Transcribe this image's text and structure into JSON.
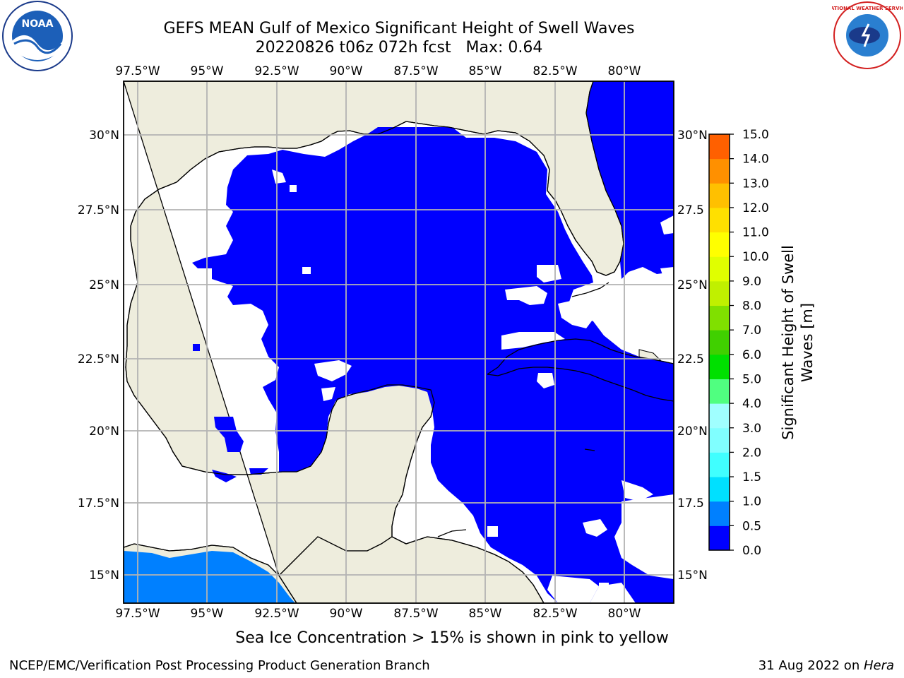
{
  "header": {
    "title_line1": "GEFS MEAN Gulf of Mexico Significant Height of Swell Waves",
    "title_line2": "20220826 t06z 072h fcst   Max: 0.64"
  },
  "logos": {
    "left": "NOAA",
    "right": "NATIONAL WEATHER SERVICE"
  },
  "map": {
    "lon_labels": [
      "97.5°W",
      "95°W",
      "92.5°W",
      "90°W",
      "87.5°W",
      "85°W",
      "82.5°W",
      "80°W"
    ],
    "lat_labels": [
      "30°N",
      "27.5°N",
      "25°N",
      "22.5°N",
      "20°N",
      "17.5°N",
      "15°N"
    ],
    "right_lat_labels": [
      "30°N",
      "27.5",
      "25°N",
      "22.5",
      "20°N",
      "17.5",
      "15°N"
    ],
    "colors": {
      "land": "#eeeddd",
      "low_swell": "#0000ff",
      "swell_05_10": "#0080ff",
      "grid": "#b3b3b3"
    }
  },
  "colorbar": {
    "label": "Significant Height of Swell Waves [m]",
    "tick_labels": [
      "15.0",
      "14.0",
      "13.0",
      "12.0",
      "11.0",
      "10.0",
      "9.0",
      "8.0",
      "7.0",
      "6.0",
      "5.0",
      "4.0",
      "3.0",
      "2.0",
      "1.5",
      "1.0",
      "0.5",
      "0.0"
    ],
    "colors": [
      "#0000ff",
      "#0080ff",
      "#00e0ff",
      "#40ffff",
      "#80ffff",
      "#a0ffff",
      "#50ff80",
      "#00e000",
      "#40d000",
      "#80e000",
      "#c0f000",
      "#e0ff00",
      "#ffff00",
      "#ffe000",
      "#ffc000",
      "#ff9000",
      "#ff6000",
      "#ff3000",
      "#ff0000"
    ]
  },
  "footer": {
    "note": "Sea Ice Concentration > 15% is shown in pink to yellow",
    "left": "NCEP/EMC/Verification Post Processing Product Generation Branch",
    "right_prefix": "31 Aug 2022 on ",
    "right_host": "Hera"
  }
}
